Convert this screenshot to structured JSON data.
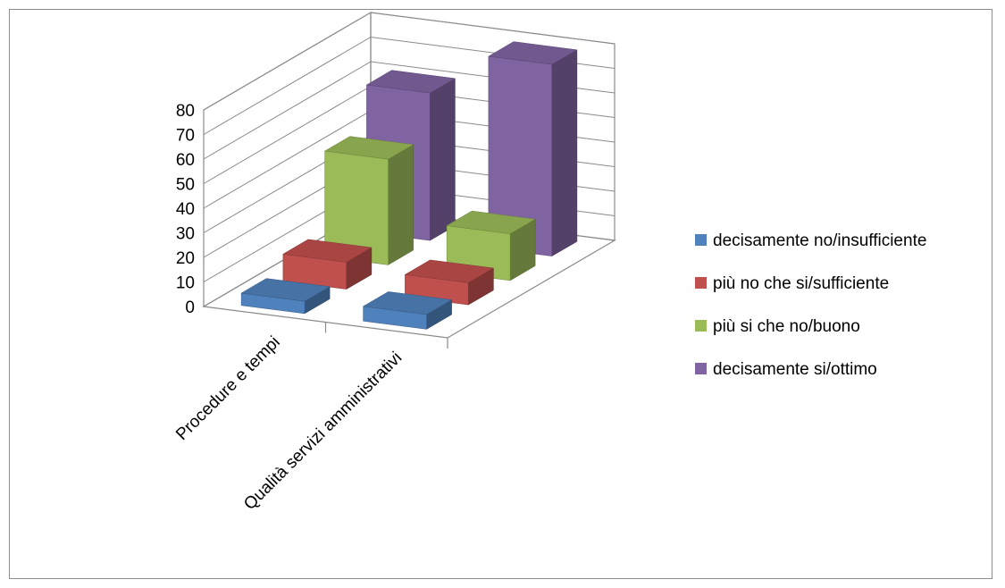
{
  "chart_data": {
    "type": "bar",
    "subtype": "3d-column-clustered-depth",
    "title": "",
    "xlabel": "",
    "ylabel": "",
    "categories": [
      "Procedure e tempi",
      "Qualità servizi amministrativi"
    ],
    "series": [
      {
        "name": "decisamente no/insufficiente",
        "values": [
          5,
          6
        ],
        "color": "#4f81bd"
      },
      {
        "name": "più no che si/sufficiente",
        "values": [
          11,
          9
        ],
        "color": "#c0504d"
      },
      {
        "name": "più si che no/buono",
        "values": [
          43,
          19
        ],
        "color": "#9bbb59"
      },
      {
        "name": "decisamente si/ottimo",
        "values": [
          60,
          78
        ],
        "color": "#8064a2"
      }
    ],
    "ylim": [
      0,
      80
    ],
    "yticks": [
      "0",
      "10",
      "20",
      "30",
      "40",
      "50",
      "60",
      "70",
      "80"
    ],
    "grid": true,
    "legend_position": "right"
  }
}
